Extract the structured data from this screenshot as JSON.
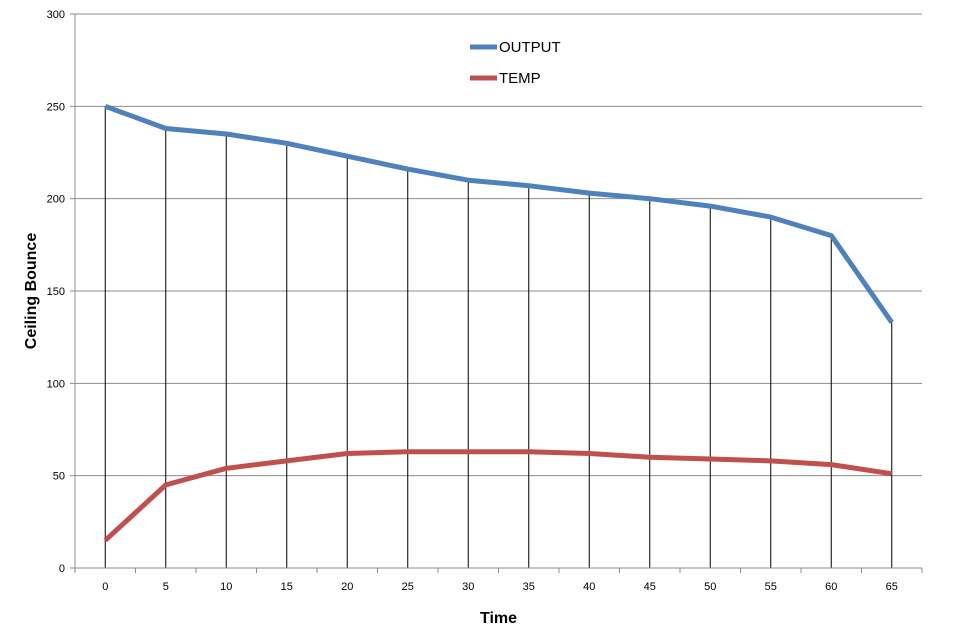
{
  "chart_data": {
    "type": "line",
    "title": "",
    "xlabel": "Time",
    "ylabel": "Ceiling Bounce",
    "x": [
      0,
      5,
      10,
      15,
      20,
      25,
      30,
      35,
      40,
      45,
      50,
      55,
      60,
      65
    ],
    "x_tick_labels": [
      "0",
      "5",
      "10",
      "15",
      "20",
      "25",
      "30",
      "35",
      "40",
      "45",
      "50",
      "55",
      "60",
      "65"
    ],
    "y_ticks": [
      0,
      50,
      100,
      150,
      200,
      250,
      300
    ],
    "y_tick_labels": [
      "0",
      "50",
      "100",
      "150",
      "200",
      "250",
      "300"
    ],
    "ylim": [
      0,
      300
    ],
    "grid": {
      "horizontal": true,
      "vertical_drop_lines": true
    },
    "legend_position": "top-center",
    "series": [
      {
        "name": "OUTPUT",
        "color": "#4F81BD",
        "values": [
          250,
          238,
          235,
          230,
          223,
          216,
          210,
          207,
          203,
          200,
          196,
          190,
          180,
          133
        ]
      },
      {
        "name": "TEMP",
        "color": "#C0504D",
        "values": [
          15,
          45,
          54,
          58,
          62,
          63,
          63,
          63,
          62,
          60,
          59,
          58,
          56,
          51
        ]
      }
    ]
  }
}
